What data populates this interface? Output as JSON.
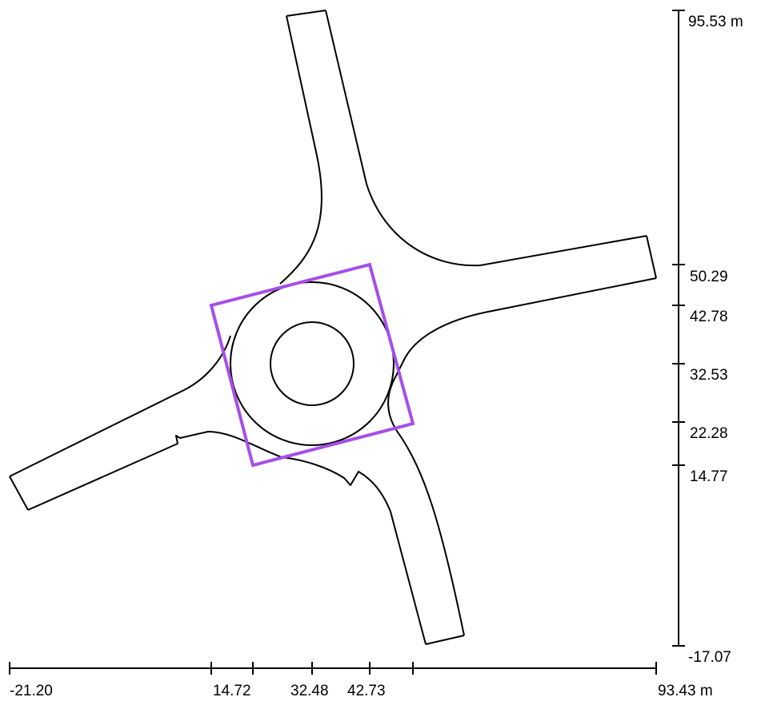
{
  "x_axis": {
    "ticks": [
      "-21.20",
      "14.72",
      "32.48",
      "42.73",
      "93.43 m"
    ]
  },
  "y_axis": {
    "ticks": [
      "95.53 m",
      "50.29",
      "42.78",
      "32.53",
      "22.28",
      "14.77",
      "-17.07"
    ]
  },
  "colors": {
    "road_outline": "#000000",
    "bounding_box": "#a64ee8"
  }
}
